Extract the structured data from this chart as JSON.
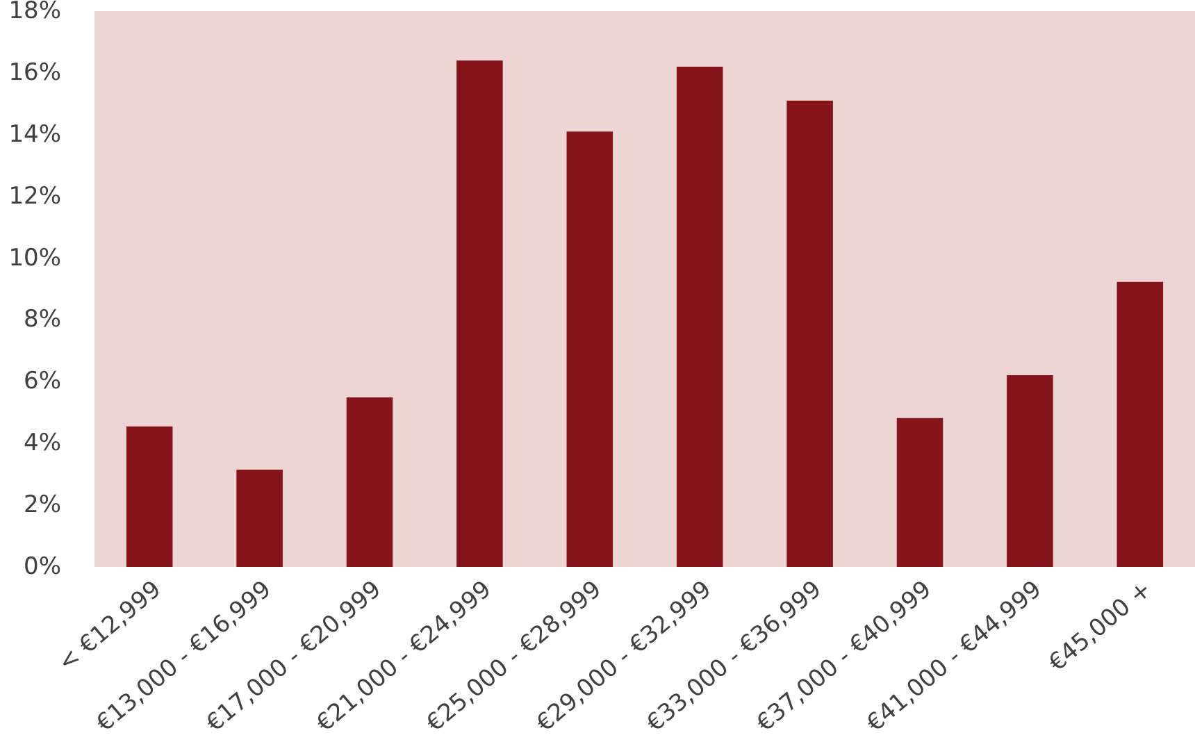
{
  "chart_data": {
    "type": "bar",
    "categories": [
      "< €12,999",
      "€13,000 - €16,999",
      "€17,000 - €20,999",
      "€21,000 - €24,999",
      "€25,000 - €28,999",
      "€29,000 - €32,999",
      "€33,000 - €36,999",
      "€37,000 - €40,999",
      "€41,000 - €44,999",
      "€45,000 +"
    ],
    "values": [
      4.55,
      3.15,
      5.49,
      16.4,
      14.1,
      16.2,
      15.1,
      4.82,
      6.21,
      9.23
    ],
    "color": "#85151a",
    "ylim": [
      0,
      18
    ],
    "yticks": [
      {
        "value": 0,
        "label": "0%"
      },
      {
        "value": 2,
        "label": "2%"
      },
      {
        "value": 4,
        "label": "4%"
      },
      {
        "value": 6,
        "label": "6%"
      },
      {
        "value": 8,
        "label": "8%"
      },
      {
        "value": 10,
        "label": "10%"
      },
      {
        "value": 12,
        "label": "12%"
      },
      {
        "value": 14,
        "label": "14%"
      },
      {
        "value": 16,
        "label": "16%"
      },
      {
        "value": 18,
        "label": "18%"
      }
    ],
    "grid": false
  }
}
